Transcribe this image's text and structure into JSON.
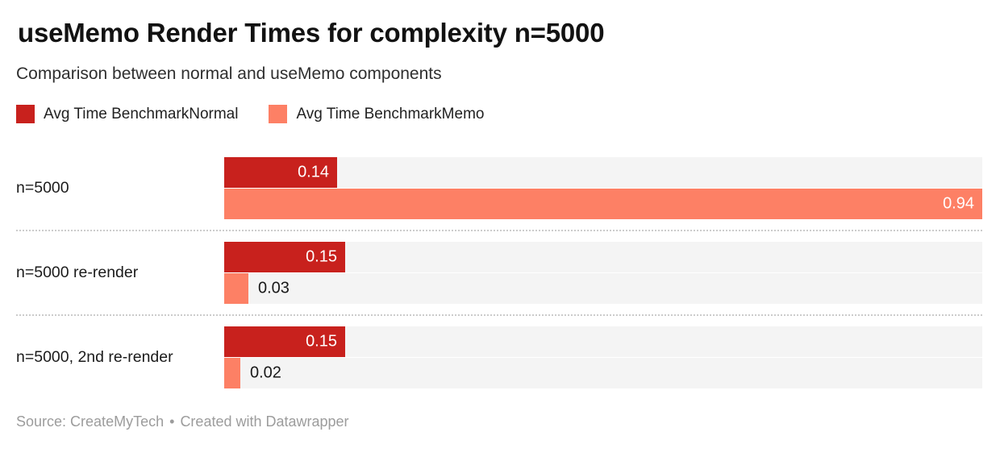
{
  "chart_data": {
    "type": "bar",
    "orientation": "horizontal",
    "title": "useMemo Render Times for complexity n=5000",
    "subtitle": "Comparison between normal and useMemo components",
    "categories": [
      "n=5000",
      "n=5000 re-render",
      "n=5000, 2nd re-render"
    ],
    "series": [
      {
        "name": "Avg Time BenchmarkNormal",
        "color": "#c8211d",
        "values": [
          0.14,
          0.15,
          0.15
        ]
      },
      {
        "name": "Avg Time BenchmarkMemo",
        "color": "#fd8065",
        "values": [
          0.94,
          0.03,
          0.02
        ]
      }
    ],
    "xlim": [
      0,
      0.94
    ],
    "value_labels": true,
    "value_label_decimals": 2,
    "legend_position": "top",
    "grid": false,
    "colors": {
      "track": "#f4f4f4",
      "label_inside": "#ffffff",
      "label_outside": "#191919",
      "row_separator": "#cccccc"
    }
  },
  "footer": {
    "source_label": "Source:",
    "source_name": "CreateMyTech",
    "separator": "•",
    "attribution": "Created with Datawrapper"
  }
}
